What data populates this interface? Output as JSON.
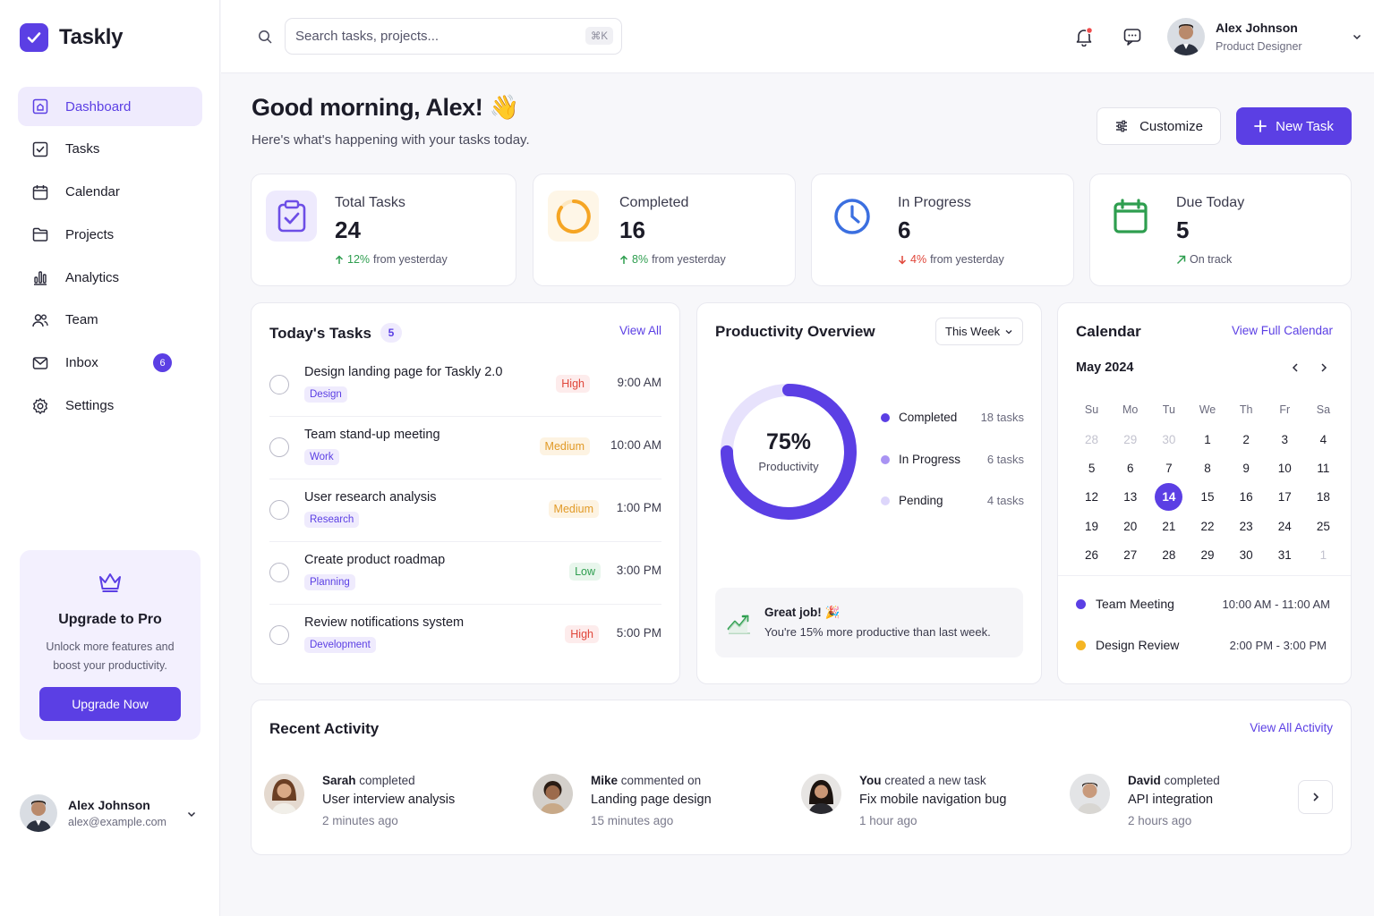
{
  "app": {
    "name": "Taskly"
  },
  "sidebar": {
    "items": [
      {
        "label": "Dashboard",
        "icon": "dashboard-icon"
      },
      {
        "label": "Tasks",
        "icon": "tasks-icon"
      },
      {
        "label": "Calendar",
        "icon": "calendar-icon"
      },
      {
        "label": "Projects",
        "icon": "folder-icon"
      },
      {
        "label": "Analytics",
        "icon": "analytics-icon"
      },
      {
        "label": "Team",
        "icon": "team-icon"
      },
      {
        "label": "Inbox",
        "icon": "inbox-icon",
        "badge": "6"
      },
      {
        "label": "Settings",
        "icon": "settings-icon"
      }
    ],
    "upgrade": {
      "title": "Upgrade to Pro",
      "description": "Unlock more features and boost your productivity.",
      "button": "Upgrade Now"
    },
    "user": {
      "name": "Alex Johnson",
      "email": "alex@example.com"
    }
  },
  "topbar": {
    "search_placeholder": "Search tasks, projects...",
    "shortcut": "⌘K",
    "user": {
      "name": "Alex Johnson",
      "role": "Product Designer"
    }
  },
  "header": {
    "greeting": "Good morning, Alex! 👋",
    "subtitle": "Here's what's happening with your tasks today.",
    "customize_label": "Customize",
    "new_task_label": "New Task"
  },
  "stats": [
    {
      "label": "Total Tasks",
      "value": "24",
      "trend_value": "12%",
      "trend_text": "from yesterday",
      "direction": "up",
      "color": "#6d4ee6"
    },
    {
      "label": "Completed",
      "value": "16",
      "trend_value": "8%",
      "trend_text": "from yesterday",
      "direction": "up",
      "color": "#f5a524"
    },
    {
      "label": "In Progress",
      "value": "6",
      "trend_value": "4%",
      "trend_text": "from yesterday",
      "direction": "down",
      "color": "#3b6fe0"
    },
    {
      "label": "Due Today",
      "value": "5",
      "trend_value": "",
      "trend_text": "On track",
      "direction": "neutral",
      "color": "#2e9e4f"
    }
  ],
  "todays_tasks": {
    "title": "Today's Tasks",
    "count": "5",
    "view_all": "View All",
    "items": [
      {
        "title": "Design landing page for Taskly 2.0",
        "tag": "Design",
        "priority": "High",
        "time": "9:00 AM"
      },
      {
        "title": "Team stand-up meeting",
        "tag": "Work",
        "priority": "Medium",
        "time": "10:00 AM"
      },
      {
        "title": "User research analysis",
        "tag": "Research",
        "priority": "Medium",
        "time": "1:00 PM"
      },
      {
        "title": "Create product roadmap",
        "tag": "Planning",
        "priority": "Low",
        "time": "3:00 PM"
      },
      {
        "title": "Review notifications system",
        "tag": "Development",
        "priority": "High",
        "time": "5:00 PM"
      }
    ]
  },
  "productivity": {
    "title": "Productivity Overview",
    "period": "This Week",
    "percent_label": "75%",
    "percent_value": 75,
    "center_label": "Productivity",
    "legend": [
      {
        "label": "Completed",
        "value": "18 tasks",
        "color": "#5b3fe4"
      },
      {
        "label": "In Progress",
        "value": "6 tasks",
        "color": "#a993f3"
      },
      {
        "label": "Pending",
        "value": "4 tasks",
        "color": "#ddd6fb"
      }
    ],
    "note_title": "Great job! 🎉",
    "note_text": "You're 15% more productive than last week."
  },
  "calendar": {
    "title": "Calendar",
    "view_full": "View Full Calendar",
    "month": "May 2024",
    "weekdays": [
      "Su",
      "Mo",
      "Tu",
      "We",
      "Th",
      "Fr",
      "Sa"
    ],
    "weeks": [
      [
        "28",
        "29",
        "30",
        "1",
        "2",
        "3",
        "4"
      ],
      [
        "5",
        "6",
        "7",
        "8",
        "9",
        "10",
        "11"
      ],
      [
        "12",
        "13",
        "14",
        "15",
        "16",
        "17",
        "18"
      ],
      [
        "19",
        "20",
        "21",
        "22",
        "23",
        "24",
        "25"
      ],
      [
        "26",
        "27",
        "28",
        "29",
        "30",
        "31",
        "1"
      ]
    ],
    "today": "14",
    "events": [
      {
        "title": "Team Meeting",
        "time": "10:00 AM - 11:00 AM",
        "color": "#5b3fe4"
      },
      {
        "title": "Design Review",
        "time": "2:00 PM - 3:00 PM",
        "color": "#f5b523"
      }
    ]
  },
  "activity": {
    "title": "Recent Activity",
    "view_all": "View All Activity",
    "items": [
      {
        "actor": "Sarah",
        "action": "completed",
        "target": "User interview analysis",
        "when": "2 minutes ago"
      },
      {
        "actor": "Mike",
        "action": "commented on",
        "target": "Landing page design",
        "when": "15 minutes ago"
      },
      {
        "actor": "You",
        "action": "created a new task",
        "target": "Fix mobile navigation bug",
        "when": "1 hour ago"
      },
      {
        "actor": "David",
        "action": "completed",
        "target": "API integration",
        "when": "2 hours ago"
      }
    ]
  }
}
